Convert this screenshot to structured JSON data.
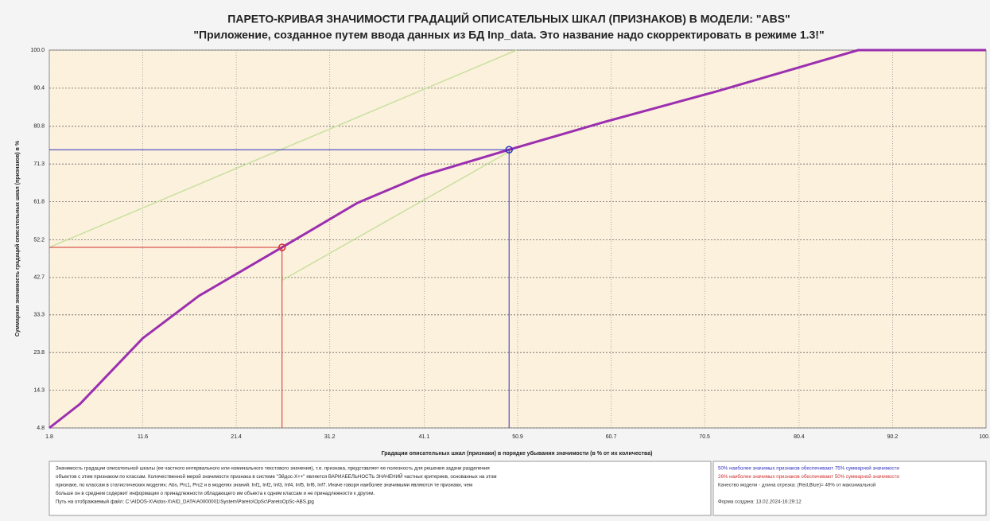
{
  "chart_data": {
    "type": "line",
    "title": "ПАРЕТО-КРИВАЯ ЗНАЧИМОСТИ ГРАДАЦИЙ ОПИСАТЕЛЬНЫХ ШКАЛ (ПРИЗНАКОВ) В МОДЕЛИ: \"ABS\"",
    "subtitle": "\"Приложение, созданное путем ввода данных из БД Inp_data. Это название надо скорректировать в режиме 1.3!\"",
    "x_label": "Градации описательных шкал (признаки) в порядке убывания значимости (в % от их количества)",
    "y_label": "Суммарная значимость градаций описательных шкал (признаков) в %",
    "xlim": [
      1.8,
      100
    ],
    "ylim": [
      4.8,
      100
    ],
    "xticks": [
      1.8,
      11.6,
      21.4,
      31.2,
      41.1,
      50.9,
      60.7,
      70.5,
      80.4,
      90.2,
      {
        "value": 100,
        "label": "100.0"
      }
    ],
    "yticks": [
      4.8,
      14.3,
      23.8,
      33.3,
      42.7,
      52.2,
      61.8,
      71.3,
      80.8,
      90.4,
      {
        "value": 100,
        "label": "100.0"
      }
    ],
    "grid": true,
    "series": [
      {
        "color": "#c8e0a0",
        "x": [
          1.8,
          50.8
        ],
        "values": [
          50.3,
          100
        ]
      },
      {
        "color": "#c8e0a0",
        "x": [
          26.2,
          50.8
        ],
        "values": [
          42.0,
          75.5
        ]
      },
      {
        "color": "#9b2fb0",
        "x": [
          1.8,
          5.0,
          11.6,
          17.5,
          26.2,
          34.1,
          40.8,
          50.0,
          60.0,
          71.6,
          86.6,
          100
        ],
        "values": [
          4.8,
          10.8,
          27.4,
          38.1,
          50.3,
          61.5,
          68.3,
          74.9,
          81.9,
          89.5,
          100,
          100
        ]
      }
    ],
    "markers": [
      {
        "color": "#d03030",
        "x": 26.2,
        "y": 50.3
      },
      {
        "color": "#3030c0",
        "x": 50.0,
        "y": 74.9
      }
    ],
    "notes_left": [
      "Значимость градации описательной шкалы (ее частного интервального или номинального текстового значения), т.е. признака, представляет ее полезность для решения задачи разделения",
      "объектов с этим признаком по классам. Количественной мерой значимости признака в системе \"Эйдос-Х++\" является ВАРИАБЕЛЬНОСТЬ ЗНАЧЕНИЙ частных критериев, основанных на этом",
      "признаке, по классам в статистических моделях: Abs, Prc1, Prc2 и в моделях знаний: Inf1, Inf2, Inf3, Inf4, Inf5, Inf6, Inf7. Иначе говоря наиболее значимыми являются те признаки, чем",
      "больше он в среднем содержит информации о принадлежности обладающего им объекта к одним классам и не принадлежности к другим.",
      "Путь на отображаемый файл: C:\\AIDOS-X\\Aidos-X\\AID_DATA\\A0000001\\System\\Pareto\\OpSc\\ParetoOpSc-ABS.jpg"
    ],
    "notes_right": [
      {
        "text": "50% наиболее значимых признаков обеспечивают 75% суммарной значимости",
        "color": "#3030c0"
      },
      {
        "text": "26% наиболее значимых признаков обеспечивают 50% суммарной значимости",
        "color": "#d03030"
      },
      {
        "text": "Качество модели - длина отрезка: (Red,Blue)=     49% от максимальной",
        "color": "#333333"
      },
      {
        "text": "Форма создана: 13.02.2024-16:29:12",
        "color": "#333333"
      }
    ]
  }
}
